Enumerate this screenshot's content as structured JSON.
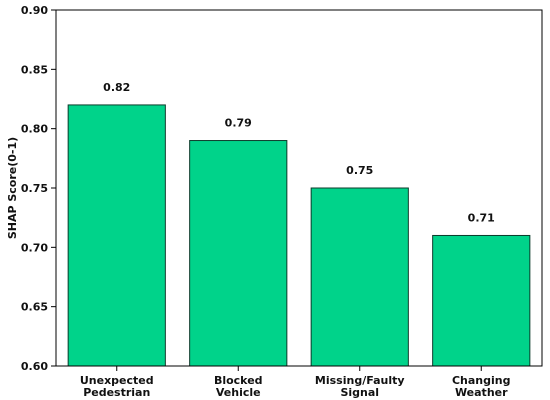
{
  "chart_data": {
    "type": "bar",
    "categories": [
      [
        "Unexpected",
        "Pedestrian"
      ],
      [
        "Blocked",
        "Vehicle"
      ],
      [
        "Missing/Faulty",
        "Signal"
      ],
      [
        "Changing",
        "Weather"
      ]
    ],
    "values": [
      0.82,
      0.79,
      0.75,
      0.71
    ],
    "value_labels": [
      "0.82",
      "0.79",
      "0.75",
      "0.71"
    ],
    "title": "",
    "xlabel": "",
    "ylabel": "SHAP Score(0-1)",
    "ylim": [
      0.6,
      0.9
    ],
    "yticks": [
      "0.60",
      "0.65",
      "0.70",
      "0.75",
      "0.80",
      "0.85",
      "0.90"
    ],
    "grid": false,
    "colors": {
      "bar_fill": "#00d38a",
      "bar_edge": "#0b3b2b",
      "axis": "#000000"
    }
  }
}
